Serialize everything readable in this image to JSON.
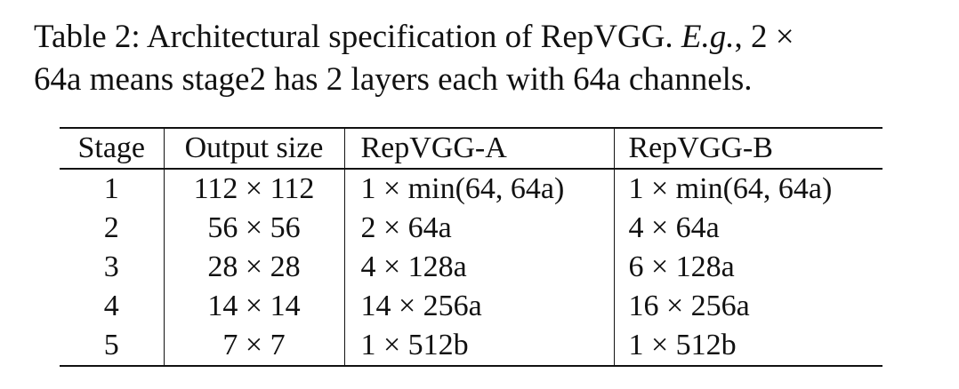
{
  "caption": {
    "line1_prefix": "Table 2: Architectural specification of RepVGG.",
    "line1_eg": "E.g.",
    "line1_suffix": ", 2 ×",
    "line2": "64a means stage2 has 2 layers each with 64a channels."
  },
  "table": {
    "headers": [
      "Stage",
      "Output size",
      "RepVGG-A",
      "RepVGG-B"
    ],
    "rows": [
      [
        "1",
        "112 × 112",
        "1 × min(64, 64a)",
        "1 × min(64, 64a)"
      ],
      [
        "2",
        "56 × 56",
        "2 × 64a",
        "4 × 64a"
      ],
      [
        "3",
        "28 × 28",
        "4 × 128a",
        "6 × 128a"
      ],
      [
        "4",
        "14 × 14",
        "14 × 256a",
        "16 × 256a"
      ],
      [
        "5",
        "7 × 7",
        "1 × 512b",
        "1 × 512b"
      ]
    ]
  }
}
